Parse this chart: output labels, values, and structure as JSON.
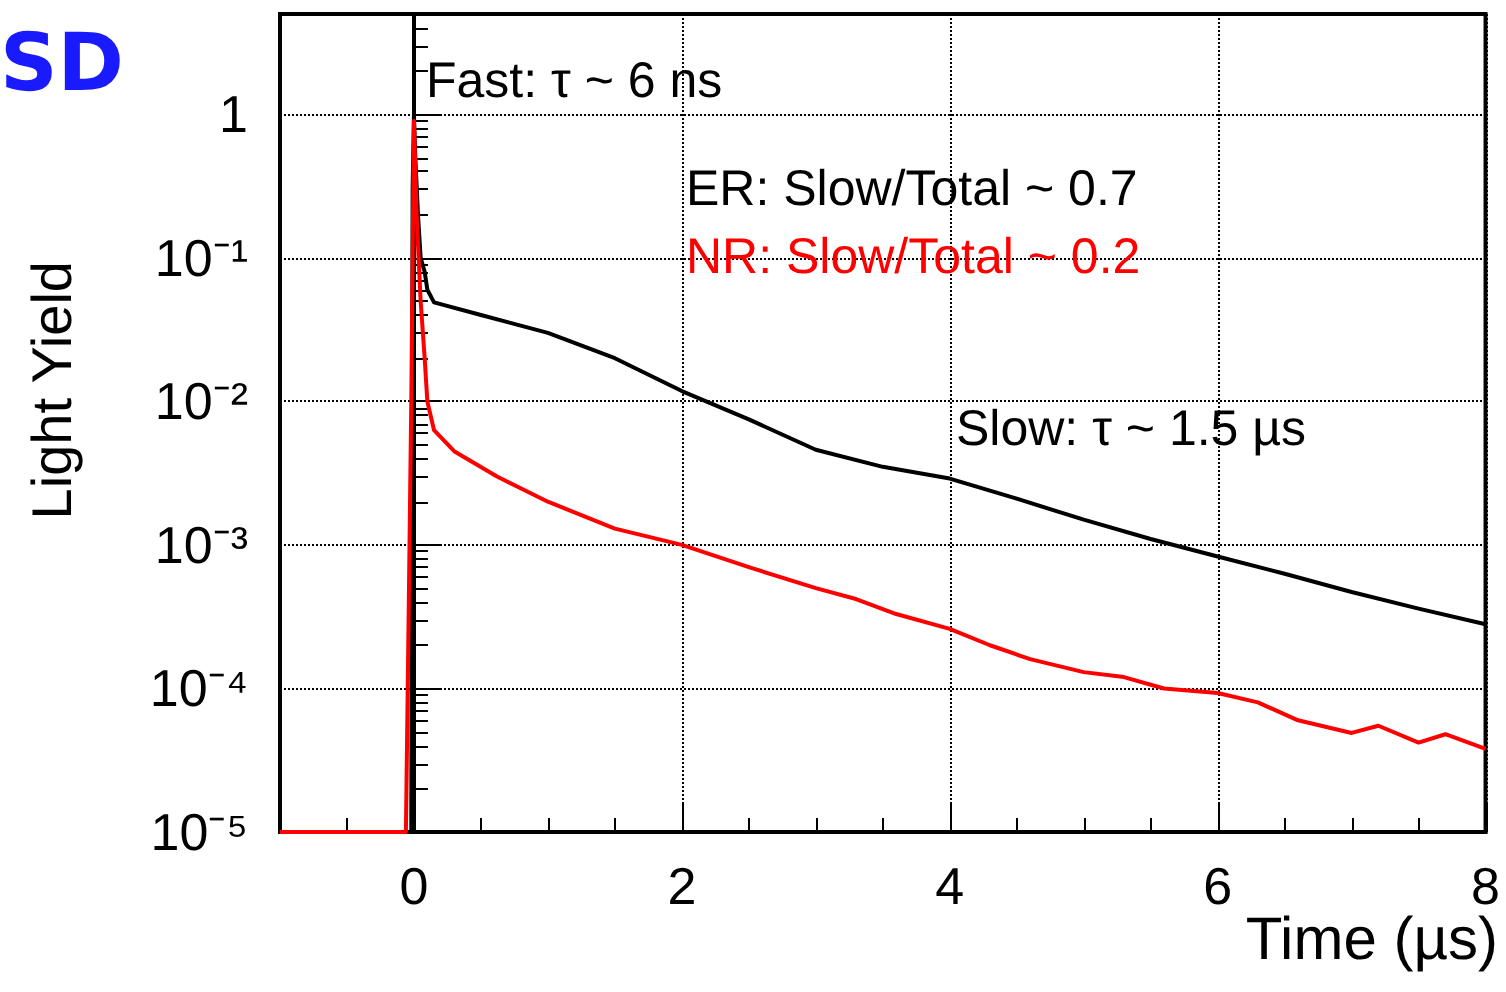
{
  "chart_data": {
    "type": "line",
    "title": "SD",
    "xlabel": "Time (µs)",
    "ylabel": "Light Yield",
    "annotations": [
      "Fast: τ ~ 6 ns",
      "ER: Slow/Total ~ 0.7",
      "NR: Slow/Total ~ 0.2",
      "Slow: τ ~ 1.5 µs"
    ],
    "series": [
      {
        "color": "#000000",
        "x": [
          -1,
          -0.02,
          -0.01,
          0,
          0.01,
          0.03,
          0.05,
          0.08,
          0.1,
          0.15,
          0.5,
          1,
          1.5,
          2,
          2.5,
          3,
          3.5,
          4,
          4.5,
          5,
          5.5,
          6,
          6.5,
          7,
          7.5,
          8
        ],
        "values": [
          1e-05,
          1e-05,
          0.3,
          1,
          0.5,
          0.2,
          0.1,
          0.08,
          0.06,
          0.049,
          0.04,
          0.03,
          0.02,
          0.0118,
          0.0075,
          0.0046,
          0.0035,
          0.0029,
          0.0021,
          0.0015,
          0.0011,
          0.00083,
          0.00063,
          0.00047,
          0.00036,
          0.00028
        ]
      },
      {
        "color": "#ff0000",
        "x": [
          -1,
          -0.06,
          -0.04,
          -0.02,
          0,
          0.02,
          0.05,
          0.08,
          0.1,
          0.15,
          0.3,
          0.62,
          1,
          1.5,
          2,
          2.5,
          3,
          3.3,
          3.6,
          4,
          4.3,
          4.6,
          5,
          5.3,
          5.6,
          6,
          6.3,
          6.6,
          7,
          7.2,
          7.5,
          7.7,
          8
        ],
        "values": [
          1e-05,
          1e-05,
          0.0003,
          0.01,
          0.9,
          0.2,
          0.05,
          0.02,
          0.01,
          0.0063,
          0.0045,
          0.003,
          0.002,
          0.0013,
          0.001,
          0.0007,
          0.0005,
          0.00042,
          0.00033,
          0.00026,
          0.0002,
          0.00016,
          0.00013,
          0.00012,
          0.0001,
          9.3e-05,
          8e-05,
          6e-05,
          4.9e-05,
          5.5e-05,
          4.2e-05,
          4.8e-05,
          3.8e-05
        ]
      }
    ],
    "xlim": [
      -1,
      8
    ],
    "xticks": [
      0,
      2,
      4,
      6,
      8
    ],
    "ylim": [
      1e-05,
      5
    ],
    "yticks": [
      {
        "value": 1e-05,
        "label": "10⁻⁵"
      },
      {
        "value": 0.0001,
        "label": "10⁻⁴"
      },
      {
        "value": 0.001,
        "label": "10⁻³"
      },
      {
        "value": 0.01,
        "label": "10⁻²"
      },
      {
        "value": 0.1,
        "label": "10⁻¹"
      },
      1
    ],
    "log": "y",
    "grid": true,
    "marker": "none",
    "line_style": "solid"
  }
}
